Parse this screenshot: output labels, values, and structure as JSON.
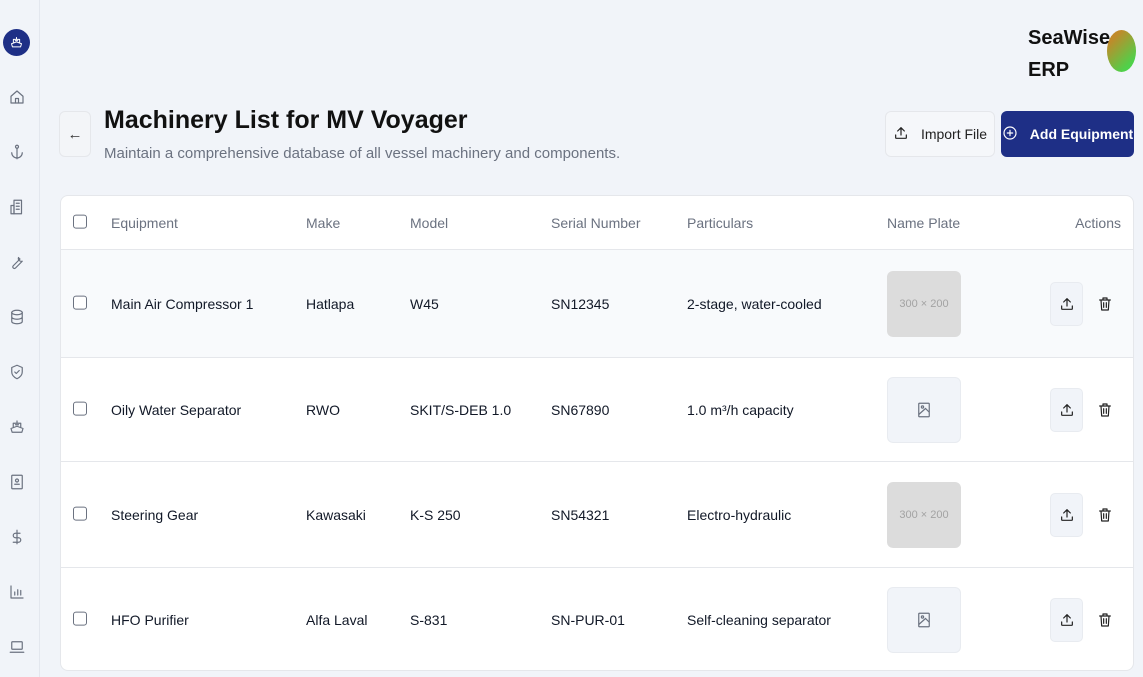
{
  "sidebar": {
    "items": [
      {
        "icon": "ship-icon",
        "active": true
      },
      {
        "icon": "home-icon"
      },
      {
        "icon": "anchor-icon"
      },
      {
        "icon": "building-icon"
      },
      {
        "icon": "wrench-icon"
      },
      {
        "icon": "database-icon"
      },
      {
        "icon": "shield-check-icon"
      },
      {
        "icon": "ship-icon"
      },
      {
        "icon": "contact-book-icon"
      },
      {
        "icon": "dollar-icon"
      },
      {
        "icon": "bar-chart-icon"
      },
      {
        "icon": "laptop-icon"
      }
    ]
  },
  "header": {
    "brand_line1": "SeaWise",
    "brand_line2": "ERP",
    "title": "Machinery List for MV Voyager",
    "subtitle": "Maintain a comprehensive database of all vessel machinery and components.",
    "import_label": "Import File",
    "add_label": "Add Equipment",
    "accent": "#1e2f86"
  },
  "table": {
    "columns": [
      "Equipment",
      "Make",
      "Model",
      "Serial Number",
      "Particulars",
      "Name Plate",
      "Actions"
    ],
    "rows": [
      {
        "equipment": "Main Air Compressor 1",
        "make": "Hatlapa",
        "model": "W45",
        "serial": "SN12345",
        "particulars": "2-stage, water-cooled",
        "plate": "300 × 200"
      },
      {
        "equipment": "Oily Water Separator",
        "make": "RWO",
        "model": "SKIT/S-DEB 1.0",
        "serial": "SN67890",
        "particulars": "1.0 m³/h capacity",
        "plate": null
      },
      {
        "equipment": "Steering Gear",
        "make": "Kawasaki",
        "model": "K-S 250",
        "serial": "SN54321",
        "particulars": "Electro-hydraulic",
        "plate": "300 × 200"
      },
      {
        "equipment": "HFO Purifier",
        "make": "Alfa Laval",
        "model": "S-831",
        "serial": "SN-PUR-01",
        "particulars": "Self-cleaning separator",
        "plate": null
      }
    ]
  }
}
